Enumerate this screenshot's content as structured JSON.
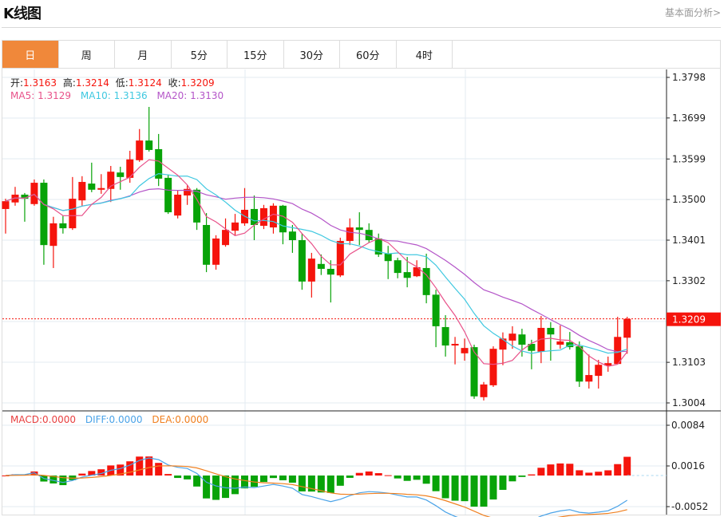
{
  "header": {
    "title": "K线图",
    "link": "基本面分析>"
  },
  "tabs": [
    {
      "label": "日",
      "active": true
    },
    {
      "label": "周"
    },
    {
      "label": "月"
    },
    {
      "label": "5分"
    },
    {
      "label": "15分"
    },
    {
      "label": "30分"
    },
    {
      "label": "60分"
    },
    {
      "label": "4时"
    }
  ],
  "ohlc_legend": {
    "open_label": "开:",
    "open": "1.3163",
    "high_label": "高:",
    "high": "1.3214",
    "low_label": "低:",
    "low": "1.3124",
    "close_label": "收:",
    "close": "1.3209"
  },
  "ma_legend": {
    "ma5_label": "MA5:",
    "ma5": "1.3129",
    "ma10_label": "MA10:",
    "ma10": "1.3136",
    "ma20_label": "MA20:",
    "ma20": "1.3130"
  },
  "macd_legend": {
    "macd_label": "MACD:",
    "macd": "0.0000",
    "diff_label": "DIFF:",
    "diff": "0.0000",
    "dea_label": "DEA:",
    "dea": "0.0000"
  },
  "colors": {
    "up": "#f5140c",
    "down": "#08a308",
    "ma5": "#e8528a",
    "ma10": "#3fc8e0",
    "ma20": "#b455c8",
    "diff": "#4aa3e8",
    "dea": "#f08020",
    "accent": "#f0883a"
  },
  "chart_data": {
    "type": "candlestick",
    "current_price": "1.3209",
    "price_ticks": [
      "1.3798",
      "1.3699",
      "1.3599",
      "1.3500",
      "1.3401",
      "1.3302",
      "1.3103",
      "1.3004"
    ],
    "price_range": [
      1.3004,
      1.3798
    ],
    "macd_ticks": [
      "0.0084",
      "0.0016",
      "-0.0052"
    ],
    "macd_range": [
      -0.0052,
      0.0084
    ],
    "candles": [
      [
        1.3477,
        1.3502,
        1.3417,
        1.3496
      ],
      [
        1.3493,
        1.3531,
        1.3485,
        1.3512
      ],
      [
        1.3512,
        1.3516,
        1.3446,
        1.3502
      ],
      [
        1.3489,
        1.3549,
        1.3485,
        1.3541
      ],
      [
        1.3541,
        1.3549,
        1.3341,
        1.3389
      ],
      [
        1.3387,
        1.3458,
        1.3333,
        1.3442
      ],
      [
        1.3442,
        1.346,
        1.3417,
        1.343
      ],
      [
        1.343,
        1.3555,
        1.3426,
        1.3502
      ],
      [
        1.3498,
        1.3557,
        1.3485,
        1.3543
      ],
      [
        1.3539,
        1.359,
        1.3518,
        1.3524
      ],
      [
        1.3524,
        1.3562,
        1.3514,
        1.3528
      ],
      [
        1.3526,
        1.3582,
        1.3494,
        1.3568
      ],
      [
        1.3566,
        1.358,
        1.3524,
        1.3555
      ],
      [
        1.3553,
        1.3619,
        1.3541,
        1.3598
      ],
      [
        1.3596,
        1.3672,
        1.3592,
        1.3644
      ],
      [
        1.3644,
        1.3726,
        1.3617,
        1.3621
      ],
      [
        1.3623,
        1.366,
        1.3533,
        1.3551
      ],
      [
        1.3553,
        1.3561,
        1.3465,
        1.3469
      ],
      [
        1.3461,
        1.3522,
        1.3454,
        1.3512
      ],
      [
        1.351,
        1.3535,
        1.3487,
        1.3526
      ],
      [
        1.3524,
        1.3528,
        1.3426,
        1.3444
      ],
      [
        1.3438,
        1.3467,
        1.3323,
        1.3341
      ],
      [
        1.3341,
        1.3413,
        1.3329,
        1.3405
      ],
      [
        1.3389,
        1.3454,
        1.3385,
        1.3426
      ],
      [
        1.3424,
        1.3465,
        1.3413,
        1.3444
      ],
      [
        1.3442,
        1.3528,
        1.3436,
        1.3475
      ],
      [
        1.3477,
        1.351,
        1.3401,
        1.3438
      ],
      [
        1.3436,
        1.3487,
        1.3428,
        1.3479
      ],
      [
        1.3432,
        1.3491,
        1.3417,
        1.3485
      ],
      [
        1.3485,
        1.3487,
        1.3391,
        1.342
      ],
      [
        1.3422,
        1.3438,
        1.337,
        1.3401
      ],
      [
        1.3401,
        1.3418,
        1.328,
        1.33
      ],
      [
        1.33,
        1.337,
        1.3261,
        1.3356
      ],
      [
        1.3343,
        1.3366,
        1.3316,
        1.3331
      ],
      [
        1.3331,
        1.3352,
        1.3249,
        1.3317
      ],
      [
        1.3315,
        1.3407,
        1.3311,
        1.3399
      ],
      [
        1.3399,
        1.3454,
        1.3389,
        1.3432
      ],
      [
        1.3432,
        1.3469,
        1.3389,
        1.3426
      ],
      [
        1.3426,
        1.3442,
        1.3395,
        1.3401
      ],
      [
        1.3405,
        1.3417,
        1.336,
        1.3366
      ],
      [
        1.3368,
        1.3387,
        1.3306,
        1.335
      ],
      [
        1.3352,
        1.3358,
        1.3308,
        1.3321
      ],
      [
        1.3323,
        1.336,
        1.3286,
        1.3309
      ],
      [
        1.3313,
        1.3352,
        1.3311,
        1.3335
      ],
      [
        1.3333,
        1.3368,
        1.3247,
        1.3267
      ],
      [
        1.3268,
        1.328,
        1.314,
        1.3191
      ],
      [
        1.3189,
        1.3218,
        1.3117,
        1.3144
      ],
      [
        1.3144,
        1.3165,
        1.3098,
        1.3148
      ],
      [
        1.3125,
        1.3161,
        1.3107,
        1.3138
      ],
      [
        1.314,
        1.3146,
        1.3014,
        1.302
      ],
      [
        1.3018,
        1.3055,
        1.301,
        1.3049
      ],
      [
        1.3047,
        1.3142,
        1.3043,
        1.3136
      ],
      [
        1.3134,
        1.3176,
        1.3096,
        1.3161
      ],
      [
        1.3156,
        1.3191,
        1.3136,
        1.3173
      ],
      [
        1.3171,
        1.3185,
        1.3117,
        1.3146
      ],
      [
        1.3148,
        1.3158,
        1.3086,
        1.3131
      ],
      [
        1.3129,
        1.3216,
        1.3101,
        1.3187
      ],
      [
        1.3187,
        1.3201,
        1.3107,
        1.3171
      ],
      [
        1.3146,
        1.3193,
        1.3136,
        1.3154
      ],
      [
        1.3152,
        1.3177,
        1.3134,
        1.314
      ],
      [
        1.3142,
        1.3154,
        1.3043,
        1.3056
      ],
      [
        1.3056,
        1.3122,
        1.3039,
        1.3072
      ],
      [
        1.307,
        1.3109,
        1.3039,
        1.3097
      ],
      [
        1.3095,
        1.3117,
        1.308,
        1.3101
      ],
      [
        1.3099,
        1.3214,
        1.3099,
        1.3165
      ],
      [
        1.3163,
        1.3214,
        1.3124,
        1.3209
      ]
    ],
    "candle_format": [
      "open",
      "high",
      "low",
      "close"
    ],
    "indicators": [
      "MA5",
      "MA10",
      "MA20",
      "MACD(12,26,9)"
    ]
  }
}
